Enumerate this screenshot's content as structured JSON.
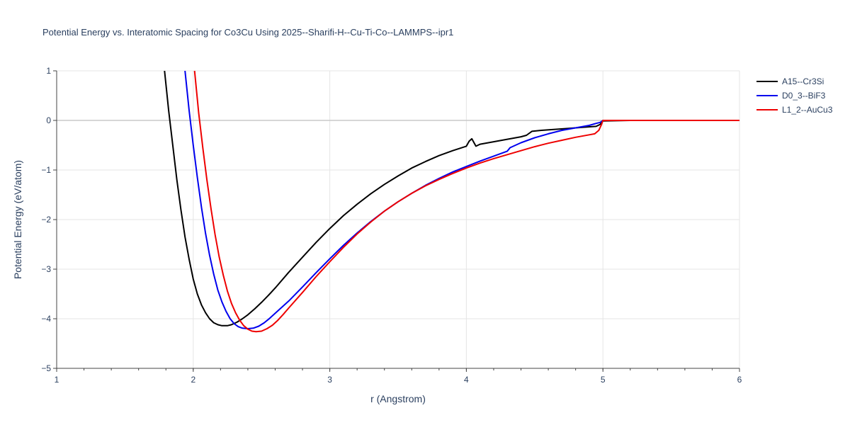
{
  "chart_data": {
    "type": "line",
    "title": "Potential Energy vs. Interatomic Spacing for Co3Cu Using 2025--Sharifi-H--Cu-Ti-Co--LAMMPS--ipr1",
    "xlabel": "r (Angstrom)",
    "ylabel": "Potential Energy (eV/atom)",
    "xlim": [
      1,
      6
    ],
    "ylim": [
      -5,
      1
    ],
    "xticks": [
      1,
      2,
      3,
      4,
      5,
      6
    ],
    "xtick_labels": [
      "1",
      "2",
      "3",
      "4",
      "5",
      "6"
    ],
    "yticks": [
      1,
      0,
      -1,
      -2,
      -3,
      -4,
      -5
    ],
    "ytick_labels": [
      "1",
      "0",
      "−1",
      "−2",
      "−3",
      "−4",
      "−5"
    ],
    "grid": true,
    "legend_position": "top-right",
    "series": [
      {
        "name": "A15--Cr3Si",
        "color": "#000000",
        "x": [
          1.79,
          1.82,
          1.85,
          1.88,
          1.91,
          1.94,
          1.97,
          2.0,
          2.03,
          2.06,
          2.09,
          2.12,
          2.15,
          2.18,
          2.21,
          2.25,
          2.28,
          2.32,
          2.36,
          2.4,
          2.45,
          2.5,
          2.55,
          2.6,
          2.7,
          2.8,
          2.9,
          3.0,
          3.1,
          3.2,
          3.3,
          3.4,
          3.5,
          3.6,
          3.7,
          3.8,
          3.9,
          4.0,
          4.02,
          4.04,
          4.07,
          4.1,
          4.2,
          4.3,
          4.4,
          4.44,
          4.48,
          4.55,
          4.65,
          4.75,
          4.85,
          4.95,
          4.98,
          5.0,
          5.2,
          5.5,
          6.0
        ],
        "y": [
          1.0,
          0.2,
          -0.5,
          -1.2,
          -1.8,
          -2.35,
          -2.8,
          -3.2,
          -3.5,
          -3.72,
          -3.88,
          -4.0,
          -4.08,
          -4.12,
          -4.14,
          -4.14,
          -4.12,
          -4.07,
          -4.0,
          -3.92,
          -3.8,
          -3.67,
          -3.53,
          -3.38,
          -3.06,
          -2.76,
          -2.46,
          -2.18,
          -1.92,
          -1.69,
          -1.48,
          -1.29,
          -1.12,
          -0.96,
          -0.83,
          -0.71,
          -0.61,
          -0.52,
          -0.42,
          -0.37,
          -0.52,
          -0.48,
          -0.43,
          -0.38,
          -0.33,
          -0.3,
          -0.22,
          -0.2,
          -0.18,
          -0.16,
          -0.14,
          -0.12,
          -0.08,
          -0.01,
          0.0,
          0.0,
          0.0
        ]
      },
      {
        "name": "D0_3--BiF3",
        "color": "#0000ee",
        "x": [
          1.94,
          1.97,
          2.0,
          2.03,
          2.06,
          2.09,
          2.12,
          2.15,
          2.18,
          2.21,
          2.24,
          2.27,
          2.3,
          2.33,
          2.36,
          2.4,
          2.44,
          2.48,
          2.52,
          2.56,
          2.6,
          2.7,
          2.8,
          2.9,
          3.0,
          3.1,
          3.2,
          3.3,
          3.4,
          3.5,
          3.6,
          3.7,
          3.8,
          3.9,
          4.0,
          4.1,
          4.2,
          4.3,
          4.32,
          4.4,
          4.5,
          4.6,
          4.7,
          4.8,
          4.9,
          4.95,
          4.98,
          5.0,
          5.5,
          6.0
        ],
        "y": [
          1.0,
          0.2,
          -0.5,
          -1.15,
          -1.75,
          -2.28,
          -2.72,
          -3.1,
          -3.42,
          -3.66,
          -3.85,
          -4.0,
          -4.1,
          -4.16,
          -4.19,
          -4.2,
          -4.19,
          -4.15,
          -4.08,
          -3.99,
          -3.89,
          -3.64,
          -3.36,
          -3.07,
          -2.79,
          -2.52,
          -2.27,
          -2.04,
          -1.83,
          -1.64,
          -1.47,
          -1.31,
          -1.17,
          -1.04,
          -0.93,
          -0.82,
          -0.72,
          -0.62,
          -0.55,
          -0.45,
          -0.35,
          -0.27,
          -0.2,
          -0.15,
          -0.1,
          -0.06,
          -0.04,
          0.0,
          0.0,
          0.0
        ]
      },
      {
        "name": "L1_2--AuCu3",
        "color": "#ee0000",
        "x": [
          2.01,
          2.04,
          2.07,
          2.1,
          2.13,
          2.16,
          2.19,
          2.22,
          2.25,
          2.28,
          2.31,
          2.34,
          2.37,
          2.4,
          2.43,
          2.46,
          2.5,
          2.54,
          2.58,
          2.62,
          2.66,
          2.7,
          2.8,
          2.9,
          3.0,
          3.1,
          3.2,
          3.3,
          3.4,
          3.5,
          3.6,
          3.7,
          3.8,
          3.9,
          4.0,
          4.1,
          4.2,
          4.3,
          4.4,
          4.5,
          4.6,
          4.7,
          4.8,
          4.9,
          4.94,
          4.97,
          4.99,
          5.0,
          5.5,
          6.0
        ],
        "y": [
          1.0,
          0.15,
          -0.55,
          -1.2,
          -1.78,
          -2.3,
          -2.75,
          -3.12,
          -3.44,
          -3.69,
          -3.88,
          -4.03,
          -4.14,
          -4.21,
          -4.25,
          -4.26,
          -4.25,
          -4.2,
          -4.13,
          -4.03,
          -3.91,
          -3.78,
          -3.47,
          -3.15,
          -2.85,
          -2.56,
          -2.29,
          -2.05,
          -1.83,
          -1.64,
          -1.47,
          -1.32,
          -1.19,
          -1.07,
          -0.96,
          -0.86,
          -0.77,
          -0.69,
          -0.61,
          -0.53,
          -0.46,
          -0.4,
          -0.34,
          -0.29,
          -0.27,
          -0.2,
          -0.08,
          0.0,
          0.0,
          0.0
        ]
      }
    ]
  }
}
